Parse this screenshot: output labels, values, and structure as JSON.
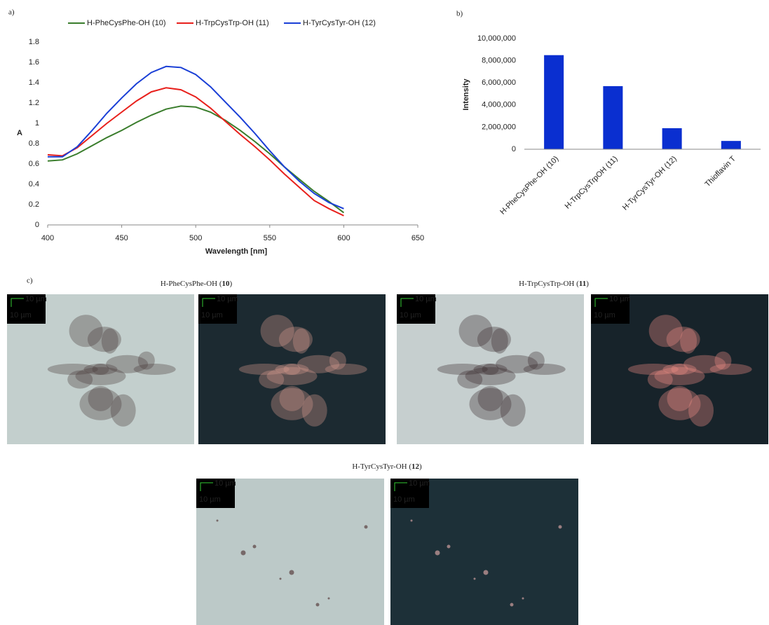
{
  "chart_data": [
    {
      "type": "line",
      "panel_label": "a)",
      "ylabel": "A",
      "xlabel": "Wavelength [nm]",
      "x": [
        400,
        410,
        420,
        430,
        440,
        450,
        460,
        470,
        480,
        490,
        500,
        510,
        520,
        530,
        540,
        550,
        560,
        570,
        580,
        590,
        600
      ],
      "series": [
        {
          "name": "H-PheCysPhe-OH (10)",
          "color": "#3a7d2c",
          "values": [
            0.63,
            0.64,
            0.7,
            0.78,
            0.86,
            0.93,
            1.01,
            1.08,
            1.14,
            1.17,
            1.16,
            1.11,
            1.03,
            0.93,
            0.82,
            0.7,
            0.57,
            0.45,
            0.33,
            0.23,
            0.12
          ]
        },
        {
          "name": "H-TrpCysTrp-OH (11)",
          "color": "#e8201c",
          "values": [
            0.69,
            0.68,
            0.76,
            0.88,
            1.0,
            1.11,
            1.22,
            1.31,
            1.35,
            1.33,
            1.26,
            1.15,
            1.02,
            0.89,
            0.77,
            0.64,
            0.5,
            0.37,
            0.24,
            0.16,
            0.09
          ]
        },
        {
          "name": "H-TyrCysTyr-OH (12)",
          "color": "#1a3fd6",
          "values": [
            0.67,
            0.67,
            0.77,
            0.93,
            1.1,
            1.25,
            1.39,
            1.5,
            1.56,
            1.55,
            1.48,
            1.36,
            1.21,
            1.06,
            0.9,
            0.73,
            0.57,
            0.43,
            0.31,
            0.22,
            0.16
          ]
        }
      ],
      "xlim": [
        400,
        650
      ],
      "xticks": [
        400,
        450,
        500,
        550,
        600,
        650
      ],
      "ylim": [
        0,
        1.8
      ],
      "yticks": [
        0,
        0.2,
        0.4,
        0.6,
        0.8,
        1,
        1.2,
        1.4,
        1.6,
        1.8
      ],
      "grid": false,
      "legend": "top"
    },
    {
      "type": "bar",
      "panel_label": "b)",
      "ylabel": "Intensity",
      "categories": [
        "H-PheCysPhe-OH (10)",
        "H-TrpCysTrpOH (11)",
        "H-TyrCysTyr-OH (12)",
        "Thioflavin T"
      ],
      "values": [
        8500000,
        5700000,
        1900000,
        750000
      ],
      "color": "#0a2fd0",
      "ylim": [
        0,
        10000000
      ],
      "yticks": [
        0,
        {
          "value": 2000000,
          "label": "2,000,000"
        },
        {
          "value": 4000000,
          "label": "4,000,000"
        },
        {
          "value": 6000000,
          "label": "6,000,000"
        },
        {
          "value": 8000000,
          "label": "8,000,000"
        },
        {
          "value": 10000000,
          "label": "10,000,000"
        }
      ],
      "grid": false
    }
  ],
  "micrographs": {
    "panel_label": "c)",
    "groups": [
      {
        "prefix": "H-PheCysPhe-OH (",
        "number": "10",
        "suffix": ")",
        "images": [
          {
            "scale_labels": [
              "10 µm",
              "10 µm"
            ]
          },
          {
            "scale_labels": [
              "10 µm",
              "10 µm"
            ]
          }
        ]
      },
      {
        "prefix": "H-TrpCysTrp-OH (",
        "number": "11",
        "suffix": ")",
        "images": [
          {
            "scale_labels": [
              "10 µm",
              "10 µm"
            ]
          },
          {
            "scale_labels": [
              "10 µm",
              "10 µm"
            ]
          }
        ]
      },
      {
        "prefix": "H-TyrCysTyr-OH (",
        "number": "12",
        "suffix": ")",
        "images": [
          {
            "scale_labels": [
              "10 µm",
              "10 µm"
            ]
          },
          {
            "scale_labels": [
              "10 µm",
              "10 µm"
            ]
          }
        ]
      }
    ]
  }
}
